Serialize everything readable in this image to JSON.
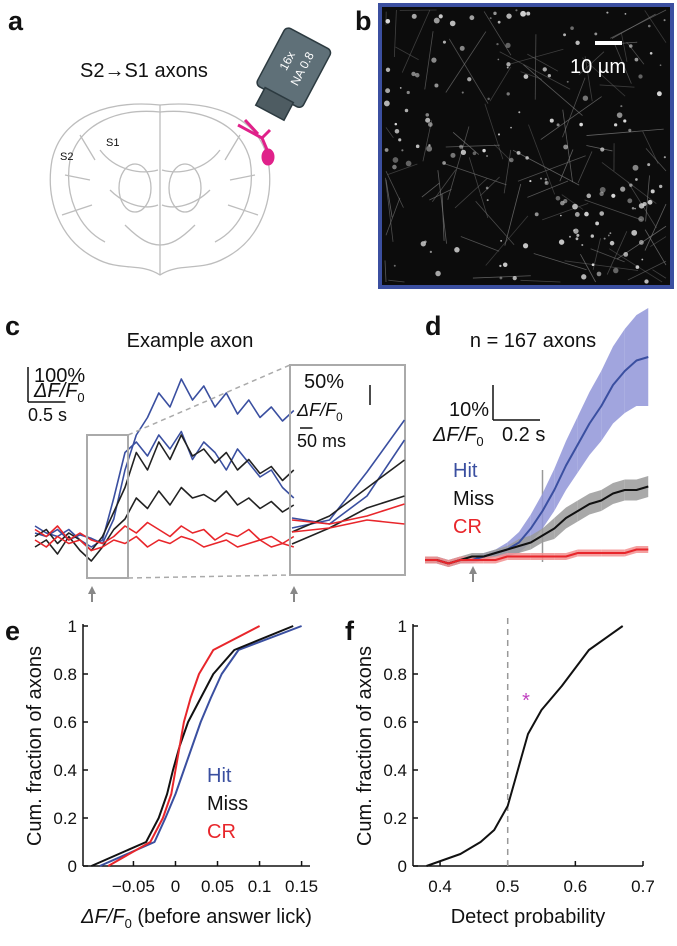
{
  "panel_labels": [
    "a",
    "b",
    "c",
    "d",
    "e",
    "f"
  ],
  "panel_a": {
    "title": "S2→S1 axons",
    "regions": [
      "S1",
      "S2"
    ],
    "objective": [
      "16x",
      "NA 0.8"
    ]
  },
  "panel_b": {
    "scale_bar": "10 µm"
  },
  "chart_data": [
    {
      "type": "trace",
      "title": "Example axon",
      "x": [
        0,
        0.15,
        0.3,
        0.45,
        0.6,
        0.75,
        0.9,
        1.05,
        1.2,
        1.35,
        1.5,
        1.65,
        1.8,
        1.95,
        2.1,
        2.25,
        2.4,
        2.55,
        2.7,
        2.85,
        3.0,
        3.15,
        3.3,
        3.45
      ],
      "series": [
        {
          "color": "#3a4fa0",
          "values": [
            20,
            10,
            30,
            0,
            15,
            5,
            -10,
            60,
            200,
            300,
            350,
            420,
            380,
            460,
            400,
            440,
            380,
            420,
            360,
            400,
            350,
            380,
            340,
            370
          ]
        },
        {
          "color": "#3a4fa0",
          "values": [
            40,
            20,
            10,
            30,
            0,
            -20,
            0,
            120,
            250,
            280,
            240,
            300,
            260,
            310,
            230,
            280,
            250,
            200,
            260,
            220,
            180,
            200,
            150,
            120
          ]
        },
        {
          "color": "#222222",
          "values": [
            10,
            30,
            -10,
            20,
            0,
            -30,
            10,
            80,
            150,
            250,
            200,
            280,
            230,
            300,
            240,
            260,
            220,
            250,
            200,
            230,
            190,
            210,
            170,
            200
          ]
        },
        {
          "color": "#222222",
          "values": [
            -20,
            0,
            -40,
            10,
            -30,
            -60,
            -20,
            30,
            60,
            120,
            90,
            140,
            100,
            150,
            120,
            130,
            110,
            140,
            100,
            120,
            90,
            110,
            80,
            100
          ]
        },
        {
          "color": "#e8262b",
          "values": [
            30,
            10,
            40,
            0,
            20,
            0,
            -10,
            10,
            40,
            20,
            50,
            30,
            10,
            40,
            20,
            30,
            0,
            20,
            10,
            30,
            0,
            10,
            -10,
            10
          ]
        },
        {
          "color": "#e8262b",
          "values": [
            0,
            -20,
            10,
            -10,
            0,
            -30,
            -20,
            0,
            -10,
            10,
            -20,
            0,
            -10,
            10,
            0,
            -20,
            -10,
            0,
            -20,
            -10,
            0,
            -20,
            -10,
            -20
          ]
        }
      ],
      "scale_y": {
        "value": 100,
        "label": "100%"
      },
      "scale_x": {
        "value": 0.5,
        "label": "0.5 s"
      },
      "unit": [
        "ΔF/F",
        "0"
      ],
      "inset": {
        "scale_y": {
          "value": 50,
          "label": "50%"
        },
        "scale_x": {
          "value": 0.05,
          "label": "50 ms"
        },
        "unit": [
          "ΔF/F",
          "0"
        ]
      }
    },
    {
      "type": "mean_trace",
      "title": "n = 167 axons",
      "x": [
        0,
        0.05,
        0.1,
        0.15,
        0.2,
        0.25,
        0.3,
        0.35,
        0.4,
        0.45,
        0.5,
        0.55,
        0.6,
        0.65,
        0.7,
        0.75,
        0.8,
        0.85,
        0.9,
        0.95
      ],
      "series": [
        {
          "name": "Hit",
          "color": "#3a4fa0",
          "band_color": "#9195d8",
          "values": [
            0,
            0,
            -1,
            0,
            0,
            1,
            2,
            3,
            5,
            9,
            14,
            20,
            27,
            33,
            39,
            44,
            50,
            54,
            57,
            58
          ],
          "errors": [
            1,
            1,
            1,
            1,
            1,
            1,
            1,
            2,
            3,
            4,
            5,
            6,
            7,
            8,
            9,
            10,
            11,
            12,
            13,
            14
          ]
        },
        {
          "name": "Miss",
          "color": "#111111",
          "band_color": "#9a9a9a",
          "values": [
            0,
            0,
            -1,
            0,
            1,
            1,
            2,
            3,
            4,
            5,
            7,
            9,
            12,
            14,
            16,
            17,
            19,
            20,
            20,
            21
          ],
          "errors": [
            1,
            1,
            1,
            1,
            1,
            1,
            1,
            1,
            2,
            2,
            2,
            3,
            3,
            3,
            3,
            3,
            3,
            3,
            3,
            3
          ]
        },
        {
          "name": "CR",
          "color": "#e8262b",
          "band_color": "#f29090",
          "values": [
            0,
            0,
            -1,
            0,
            0,
            0,
            0,
            1,
            1,
            1,
            1,
            1,
            1,
            2,
            2,
            2,
            2,
            2,
            3,
            3
          ],
          "errors": [
            1,
            1,
            1,
            1,
            1,
            1,
            1,
            1,
            1,
            1,
            1,
            1,
            1,
            1,
            1,
            1,
            1,
            1,
            1,
            1
          ]
        }
      ],
      "scale_y": {
        "value": 10,
        "label": "10%"
      },
      "scale_x": {
        "value": 0.2,
        "label": "0.2 s"
      },
      "unit": [
        "ΔF/F",
        "0"
      ]
    },
    {
      "type": "cdf",
      "ylabel": "Cum. fraction of axons",
      "xlabel": [
        "ΔF/F",
        "0",
        " (before answer lick)"
      ],
      "xlim": [
        -0.11,
        0.16
      ],
      "ylim": [
        0,
        1
      ],
      "xticks": [
        {
          "value": -0.05,
          "label": "−0.05"
        },
        0,
        0.05,
        0.1,
        0.15
      ],
      "yticks": [
        0,
        0.2,
        0.4,
        0.6,
        0.8,
        1
      ],
      "series": [
        {
          "name": "Hit",
          "color": "#3a4fa0",
          "x": [
            -0.09,
            -0.025,
            -0.012,
            0.0,
            0.01,
            0.02,
            0.03,
            0.042,
            0.055,
            0.075,
            0.15
          ],
          "values": [
            0,
            0.1,
            0.2,
            0.3,
            0.4,
            0.5,
            0.6,
            0.7,
            0.8,
            0.9,
            1
          ]
        },
        {
          "name": "Miss",
          "color": "#111111",
          "x": [
            -0.1,
            -0.035,
            -0.02,
            -0.01,
            -0.003,
            0.005,
            0.015,
            0.03,
            0.045,
            0.07,
            0.14
          ],
          "values": [
            0,
            0.1,
            0.2,
            0.3,
            0.4,
            0.5,
            0.6,
            0.7,
            0.8,
            0.9,
            1
          ]
        },
        {
          "name": "CR",
          "color": "#e8262b",
          "x": [
            -0.08,
            -0.03,
            -0.015,
            -0.005,
            0.0,
            0.005,
            0.01,
            0.018,
            0.028,
            0.045,
            0.1
          ],
          "values": [
            0,
            0.1,
            0.2,
            0.3,
            0.4,
            0.5,
            0.6,
            0.7,
            0.8,
            0.9,
            1
          ]
        }
      ]
    },
    {
      "type": "cdf",
      "ylabel": "Cum. fraction of axons",
      "xlabel": [
        "Detect probability"
      ],
      "xlim": [
        0.36,
        0.7
      ],
      "ylim": [
        0,
        1
      ],
      "xticks": [
        0.4,
        0.5,
        0.6,
        0.7
      ],
      "yticks": [
        0,
        0.2,
        0.4,
        0.6,
        0.8,
        1
      ],
      "reference_x": 0.5,
      "annotation": {
        "text": "*",
        "x": 0.527,
        "y": 0.7,
        "color": "#c040c0"
      },
      "series": [
        {
          "color": "#111111",
          "x": [
            0.38,
            0.43,
            0.46,
            0.48,
            0.5,
            0.51,
            0.52,
            0.53,
            0.55,
            0.58,
            0.62,
            0.67
          ],
          "values": [
            0,
            0.05,
            0.1,
            0.15,
            0.25,
            0.35,
            0.45,
            0.55,
            0.65,
            0.75,
            0.9,
            1
          ]
        }
      ]
    }
  ]
}
